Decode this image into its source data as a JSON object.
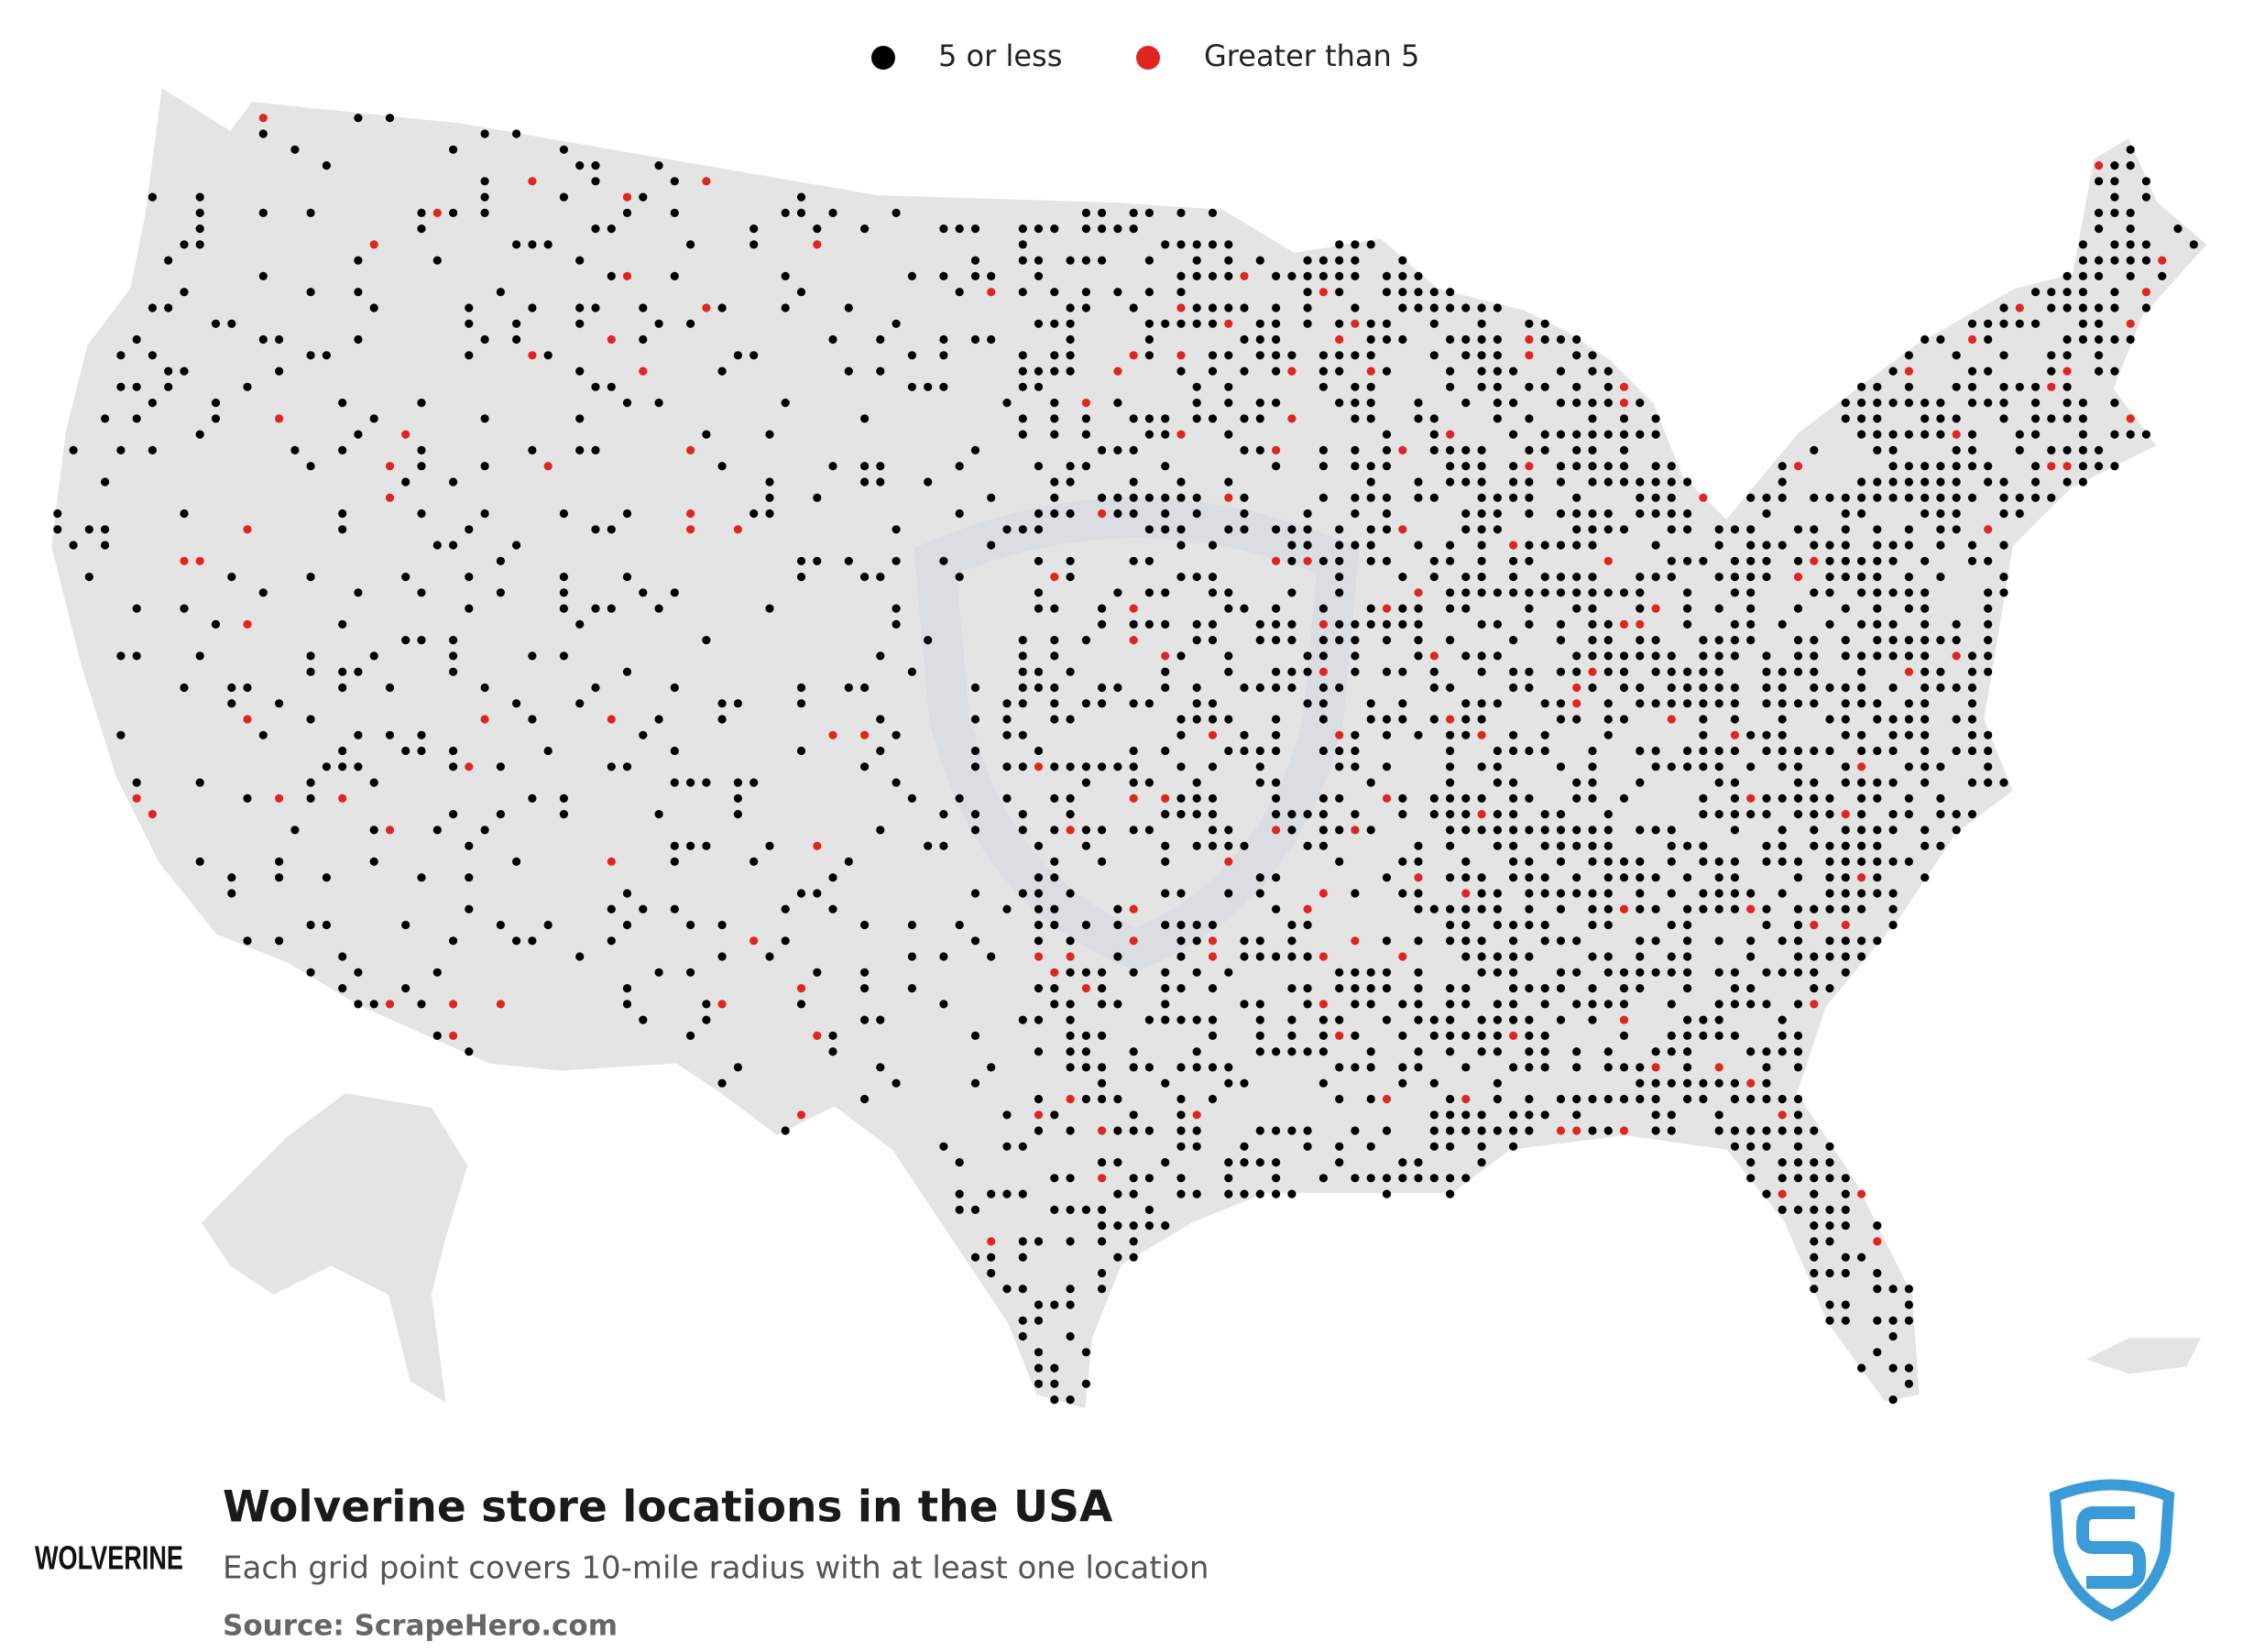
{
  "legend": [
    {
      "label": "5 or less",
      "color": "#000000"
    },
    {
      "label": "Greater than 5",
      "color": "#e0251f"
    }
  ],
  "title": "Wolverine store locations in the USA",
  "subtitle": "Each grid point covers 10-mile radius with at least one location",
  "source": "Source: ScrapeHero.com",
  "brand": "WOLVERINE"
}
